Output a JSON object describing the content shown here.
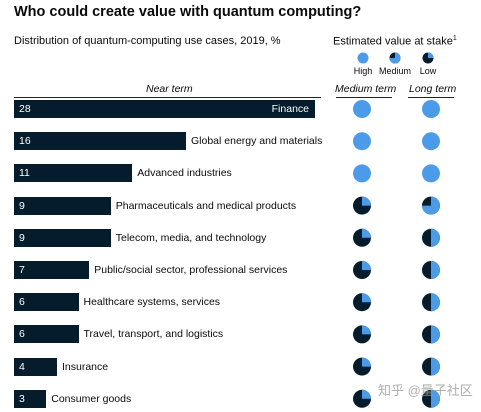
{
  "header": {
    "title": "Who could create value with quantum computing?",
    "subtitle": "Distribution of quantum-computing use cases, 2019, %",
    "value_title": "Estimated value at stake",
    "footnote_marker": "1"
  },
  "legend": {
    "levels": [
      {
        "label": "High",
        "fill": 1.0
      },
      {
        "label": "Medium",
        "fill": 0.75
      },
      {
        "label": "Low",
        "fill": 0.25
      }
    ]
  },
  "columns": {
    "near_term": "Near term",
    "medium_term": "Medium term",
    "long_term": "Long term"
  },
  "colors": {
    "bar": "#051c2c",
    "value_high": "#4c9be8",
    "value_dark": "#051c2c",
    "rule": "#222222"
  },
  "watermark": "知乎 @量子社区",
  "chart_data": {
    "type": "bar",
    "orientation": "horizontal",
    "title": "Who could create value with quantum computing?",
    "subtitle": "Distribution of quantum-computing use cases, 2019, %",
    "categories": [
      "Finance",
      "Global energy and materials",
      "Advanced industries",
      "Pharmaceuticals and medical products",
      "Telecom, media, and technology",
      "Public/social sector, professional services",
      "Healthcare systems, services",
      "Travel, transport, and logistics",
      "Insurance",
      "Consumer goods"
    ],
    "values": [
      28,
      16,
      11,
      9,
      9,
      7,
      6,
      6,
      4,
      3
    ],
    "xlim": [
      0,
      28
    ],
    "value_at_stake": {
      "medium_term": [
        1.0,
        1.0,
        1.0,
        0.25,
        0.25,
        0.25,
        0.25,
        0.25,
        0.25,
        0.25
      ],
      "long_term": [
        1.0,
        1.0,
        1.0,
        0.75,
        0.5,
        0.5,
        0.5,
        0.5,
        0.5,
        0.5
      ]
    },
    "legend_position": "top-right"
  }
}
